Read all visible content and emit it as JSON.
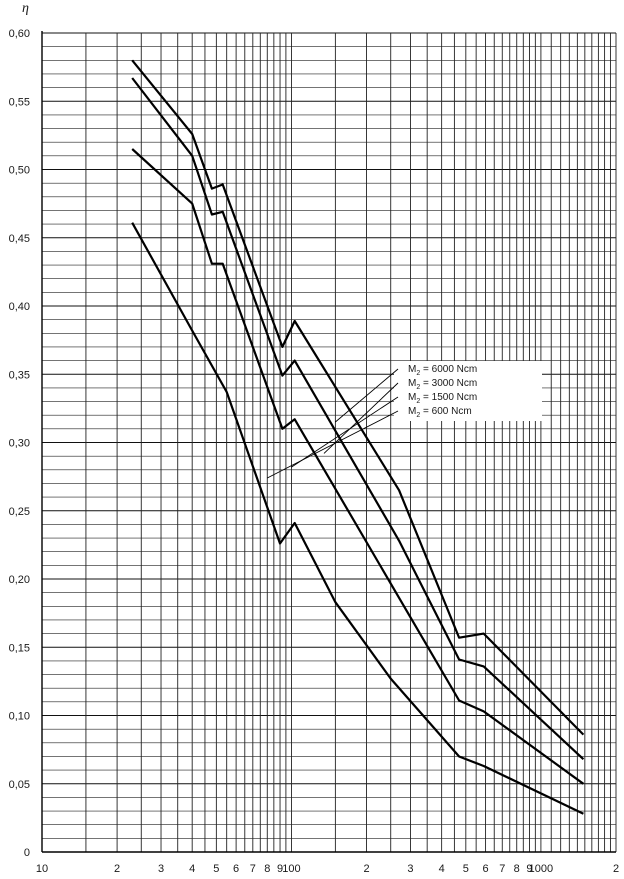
{
  "chart_data": {
    "type": "line",
    "title": "",
    "xlabel": "",
    "ylabel": "η",
    "x_scale": "log",
    "xlim": [
      10,
      2000
    ],
    "ylim": [
      0,
      0.6
    ],
    "y_ticks": [
      "0",
      "0,05",
      "0,10",
      "0,15",
      "0,20",
      "0,25",
      "0,30",
      "0,35",
      "0,40",
      "0,45",
      "0,50",
      "0,55",
      "0,60"
    ],
    "x_ticks": [
      {
        "value": 10,
        "label": "10"
      },
      {
        "value": 20,
        "label": "2"
      },
      {
        "value": 30,
        "label": "3"
      },
      {
        "value": 40,
        "label": "4"
      },
      {
        "value": 50,
        "label": "5"
      },
      {
        "value": 60,
        "label": "6"
      },
      {
        "value": 70,
        "label": "7"
      },
      {
        "value": 80,
        "label": "8"
      },
      {
        "value": 90,
        "label": "9"
      },
      {
        "value": 100,
        "label": "100"
      },
      {
        "value": 200,
        "label": "2"
      },
      {
        "value": 300,
        "label": "3"
      },
      {
        "value": 400,
        "label": "4"
      },
      {
        "value": 500,
        "label": "5"
      },
      {
        "value": 600,
        "label": "6"
      },
      {
        "value": 700,
        "label": "7"
      },
      {
        "value": 800,
        "label": "8"
      },
      {
        "value": 900,
        "label": "9"
      },
      {
        "value": 1000,
        "label": "1000"
      },
      {
        "value": 2000,
        "label": "2"
      }
    ],
    "grid": true,
    "legend_position": "center-right",
    "series": [
      {
        "name": "M₂ = 6000 Ncm",
        "label_prefix": "M",
        "label_sub": "2",
        "label_rest": " =  6000  Ncm",
        "x": [
          23,
          40,
          48,
          53,
          92,
          103,
          270,
          470,
          590,
          1480
        ],
        "y": [
          0.58,
          0.526,
          0.486,
          0.489,
          0.37,
          0.389,
          0.265,
          0.157,
          0.16,
          0.086
        ]
      },
      {
        "name": "M₂ = 3000 Ncm",
        "label_prefix": "M",
        "label_sub": "2",
        "label_rest": " =  3000  Ncm",
        "x": [
          23,
          40,
          48,
          53,
          92,
          103,
          270,
          470,
          590,
          1480
        ],
        "y": [
          0.567,
          0.51,
          0.467,
          0.469,
          0.349,
          0.36,
          0.228,
          0.141,
          0.136,
          0.068
        ]
      },
      {
        "name": "M₂ = 1500 Ncm",
        "label_prefix": "M",
        "label_sub": "2",
        "label_rest": " =  1500  Ncm",
        "x": [
          23,
          40,
          48,
          53,
          92,
          103,
          470,
          590,
          1480
        ],
        "y": [
          0.515,
          0.475,
          0.431,
          0.431,
          0.31,
          0.317,
          0.111,
          0.103,
          0.05
        ]
      },
      {
        "name": "M₂ = 600 Ncm",
        "label_prefix": "M",
        "label_sub": "2",
        "label_rest": " =    600  Ncm",
        "x": [
          23,
          40,
          55,
          90,
          103,
          150,
          250,
          470,
          590,
          1480
        ],
        "y": [
          0.461,
          0.382,
          0.337,
          0.226,
          0.241,
          0.183,
          0.127,
          0.07,
          0.063,
          0.028
        ]
      }
    ]
  }
}
